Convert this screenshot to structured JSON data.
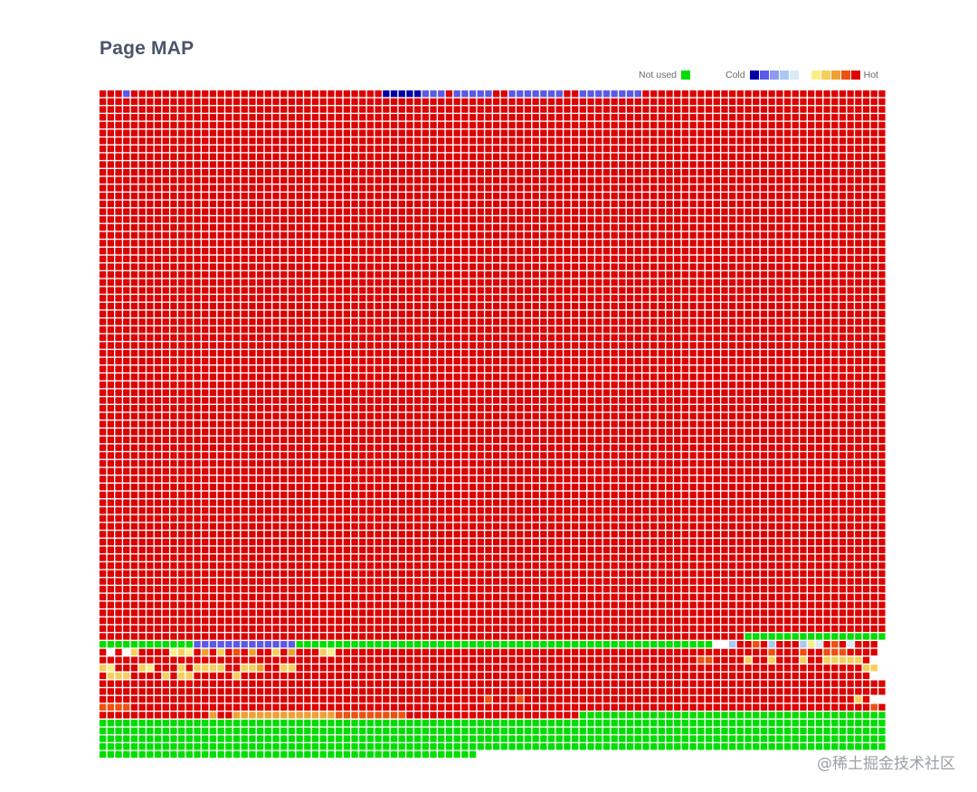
{
  "title": "Page MAP",
  "legend": {
    "not_used_label": "Not used",
    "not_used_color": "#00dd00",
    "cold_label": "Cold",
    "hot_label": "Hot",
    "cold_colors": [
      "#0000aa",
      "#5a5ae6",
      "#8c9bf0",
      "#a9c8f5",
      "#d7ebf7"
    ],
    "hot_colors": [
      "#f8ef88",
      "#f5cf5a",
      "#f0a030",
      "#f05010",
      "#dd0000"
    ]
  },
  "watermark": "@稀土掘金技术社区",
  "chart_data": {
    "type": "heatmap",
    "title": "Page MAP",
    "grid": {
      "columns": 100,
      "rows": 85
    },
    "palette": {
      "N": "#00dd00",
      "H": "#dd0000",
      "a": "#0000aa",
      "b": "#5a5ae6",
      "c": "#8c9bf0",
      "d": "#a9c8f5",
      "e": "#d7ebf7",
      "f": "#f8ef88",
      "g": "#f5cf5a",
      "h": "#f0a030",
      "i": "#f05010",
      "w": "#ffffff"
    },
    "rows_pattern": [
      {
        "row": 0,
        "cells": "HHHbHHHHHHHHHHHHHHHHHHHHHHHHHHHHHHHHaaaaabbbHbbbbbHHbbbbbbbHHbbbbbbbbHHHHHHHHHHHHHHHHHHHHHHHHHHHHHHHHHHHH"
      },
      {
        "rows_from": 1,
        "rows_to": 68,
        "fill": "H"
      },
      {
        "row": 69,
        "cells": "HHHHHHHHHHHHHHHHHHHHHHHHHHHHHHHHHHHHHHHHHHHHHHHHHHHHHHHHHHHHHHHHHHHHHHHHHHHHHHHHHHNNNNNNNNNNNNNNNNNN"
      },
      {
        "row": 70,
        "cells": "NNNNNNNNNNNNbbbbbbbbbbbbbNNNNNNNNNNNNNNNNNNNNNNNNNNNNNNNNNNNNNNNNNNNNNNNNNNNNNwwdHHiHdHHHdfeHiHeHHH"
      },
      {
        "row": 71,
        "cells": "HwHwgHHHHfgfHhHgHiHhHHgHhHHHgfHHHHHHHHHHHHHHHHHHHHHHHHHHHHHHHHHHHHHHHHHHHHHHHHHHHHHHHiHHHiHHiiiHHHH"
      },
      {
        "row": 72,
        "cells": "HHHHHHHHHHHHHHHHHHHHHHHHHHHHHHHHHHHHHHHHHHHHHHHHHHHHHHHHHHHHHHHHHHHHHHHHHHHHiiHHHHgHHgHHHgHHgggggH"
      },
      {
        "row": 73,
        "cells": "gfHHHgfHHHgHggggHHgghHHggHHHHHHHHHHHHHHHHHHHHHHHHHHHHHHHHHHHHHHHHHHHHHHHHHHHHHHHHHHHHHHHHHHHHHHHHgg"
      },
      {
        "row": 74,
        "cells": "HgggHHHHgHggHHHHHgHHHHHHHHHHHHHHHHHHHHHHHHHHHHHHHHHHHHHHHHHHHHHHHHHHHHHHHHHHHHHHHHHHHHHHHHHHHHHHHH"
      },
      {
        "rows_from": 75,
        "rows_to": 76,
        "fill": "H"
      },
      {
        "row": 77,
        "cells": "HHHHHHHHHHHHHHHHHHHHHHHHHHHHHHHHHHHHHHHHHHHHHHHHHiHHHiHHHHHHHHHHHHHHHHHHHHHHHHHHHHHHHHHHHHHHHHHHgH"
      },
      {
        "row": 78,
        "cells": "iiiiHHHHHHHHHHHHHHHHHHHHHHHHHHHHHHHHHHHHHHHHHHHHHHHHHHHHHHHHHHHHHHHHHHHHHHHHHHHHHHHHHHHHHHHHHHHHHHiH"
      },
      {
        "row": 79,
        "cells": "HHHHHHHHHHHHHHhHHhhhhhhhhhhhhhiiiiiiiiiHHHHHHHHHHHHHHHHHHHHHHNNNNNNNNNNNNNNNNNNNNNNNNNNNNNNNNNNNNNNNNNN"
      },
      {
        "rows_from": 80,
        "rows_to": 83,
        "fill": "N"
      },
      {
        "row": 84,
        "cells": "NNNNNNNNNNNNNNNNNNNNNNNNNNNNNNNNNNNNNNNNNNNNNNNN"
      }
    ]
  }
}
